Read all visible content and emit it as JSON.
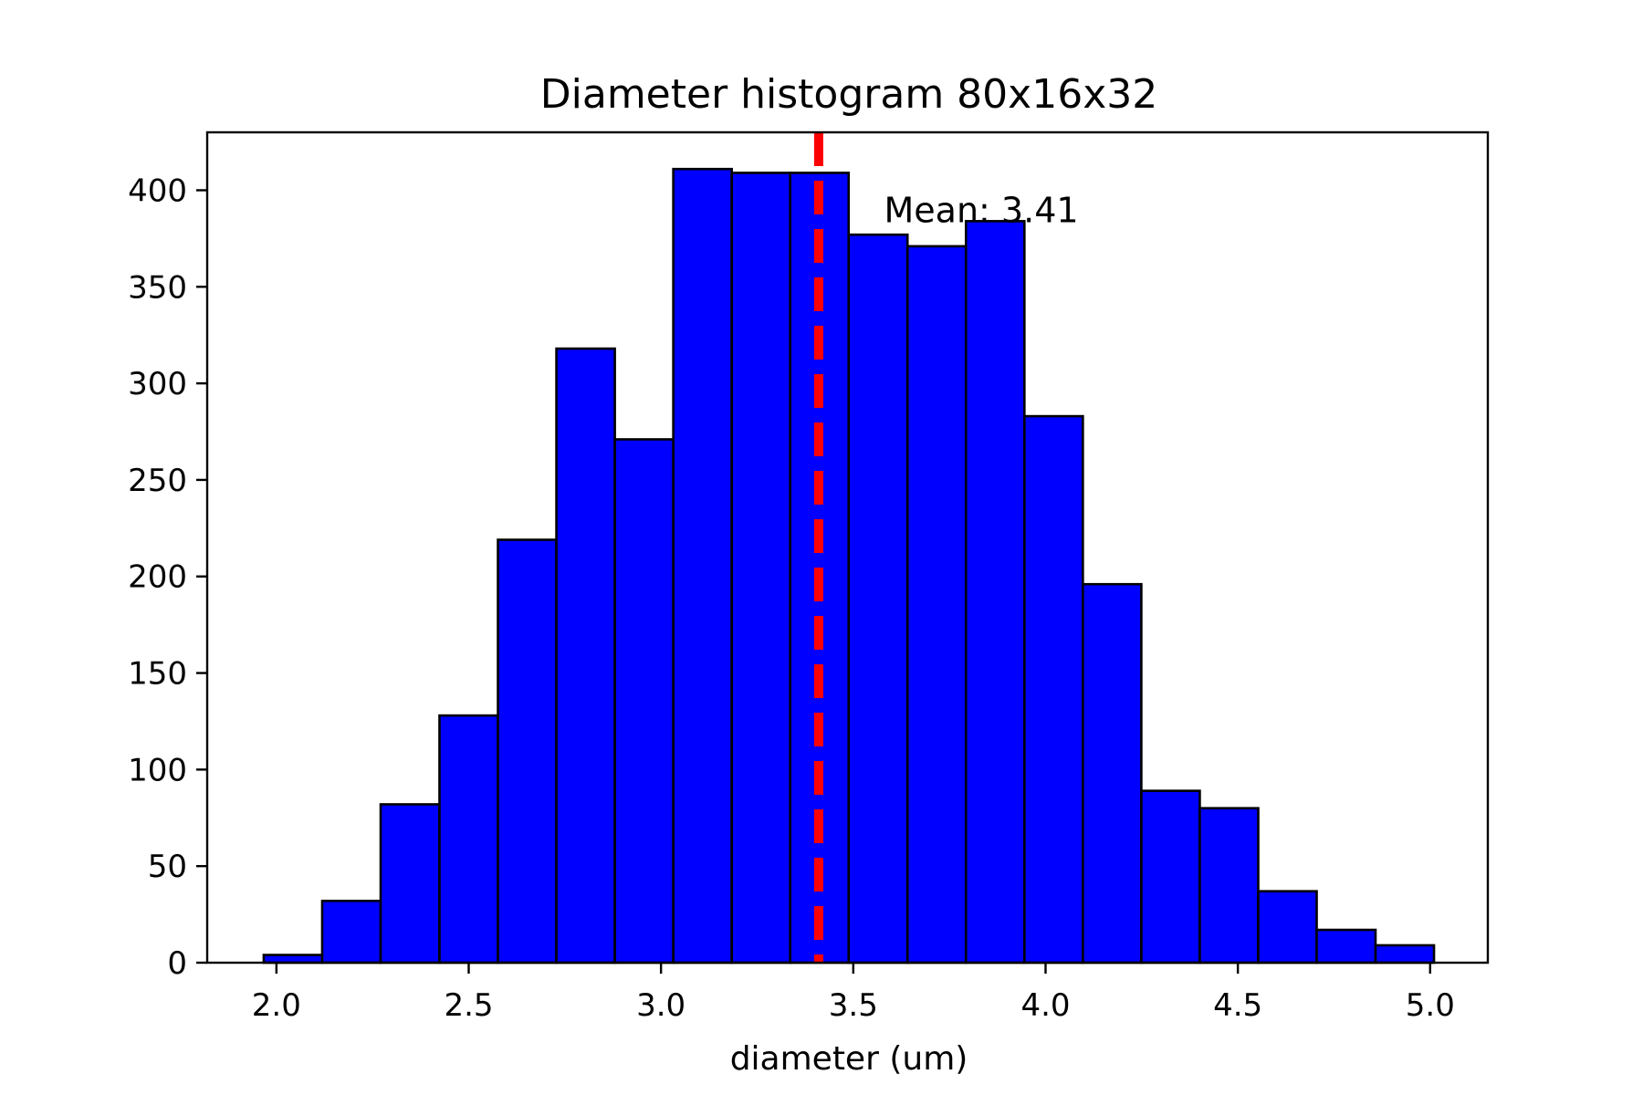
{
  "chart_data": {
    "type": "bar",
    "title": "Diameter histogram 80x16x32",
    "xlabel": "diameter (um)",
    "ylabel": "",
    "xlim": [
      1.82,
      5.15
    ],
    "ylim": [
      0,
      430
    ],
    "xticks": [
      2.0,
      2.5,
      3.0,
      3.5,
      4.0,
      4.5,
      5.0
    ],
    "xtick_labels": [
      "2.0",
      "2.5",
      "3.0",
      "3.5",
      "4.0",
      "4.5",
      "5.0"
    ],
    "yticks": [
      0,
      50,
      100,
      150,
      200,
      250,
      300,
      350,
      400
    ],
    "ytick_labels": [
      "0",
      "50",
      "100",
      "150",
      "200",
      "250",
      "300",
      "350",
      "400"
    ],
    "bin_edges": [
      1.967,
      2.119,
      2.271,
      2.424,
      2.576,
      2.728,
      2.88,
      3.032,
      3.184,
      3.336,
      3.488,
      3.641,
      3.793,
      3.945,
      4.097,
      4.249,
      4.401,
      4.553,
      4.705,
      4.858,
      5.01
    ],
    "counts": [
      4,
      32,
      82,
      128,
      219,
      318,
      271,
      411,
      409,
      409,
      377,
      371,
      384,
      283,
      196,
      89,
      80,
      37,
      17,
      9
    ],
    "bar_color": "#0000ff",
    "edge_color": "#000000",
    "mean": 3.41,
    "mean_line_color": "#ff0000",
    "mean_label": "Mean: 3.41",
    "grid": false
  }
}
